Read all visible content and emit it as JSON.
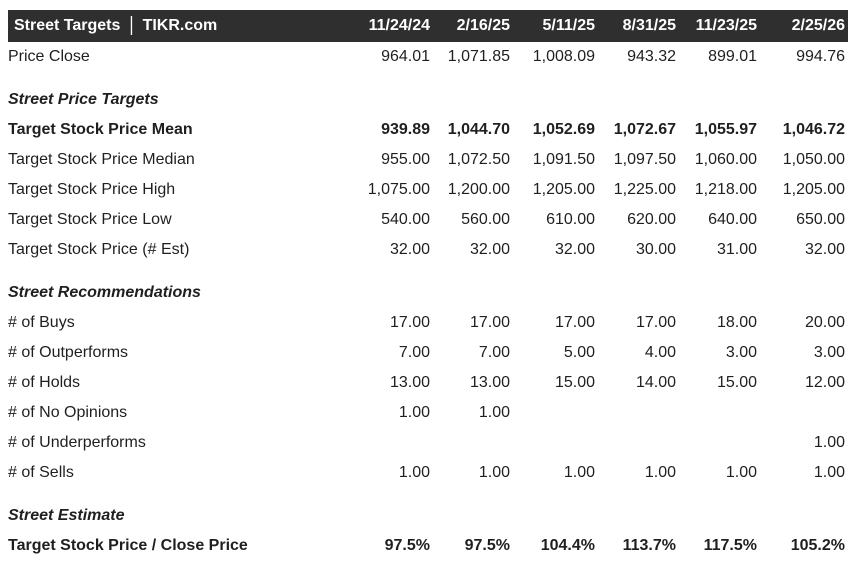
{
  "title": {
    "left": "Street Targets",
    "separator": "|",
    "right": "TIKR.com"
  },
  "colors": {
    "header_bg": "#2f2f2f",
    "header_text": "#ffffff",
    "body_text": "#1f1f1f"
  },
  "chart_data": {
    "type": "table",
    "title": "Street Targets | TIKR.com",
    "columns": [
      "11/24/24",
      "2/16/25",
      "5/11/25",
      "8/31/25",
      "11/23/25",
      "2/25/26"
    ],
    "rows": [
      {
        "label": "Price Close",
        "kind": "data",
        "values": [
          "964.01",
          "1,071.85",
          "1,008.09",
          "943.32",
          "899.01",
          "994.76"
        ]
      },
      {
        "label": "Street Price Targets",
        "kind": "section",
        "values": []
      },
      {
        "label": "Target Stock Price Mean",
        "kind": "data-bold",
        "values": [
          "939.89",
          "1,044.70",
          "1,052.69",
          "1,072.67",
          "1,055.97",
          "1,046.72"
        ]
      },
      {
        "label": "Target Stock Price Median",
        "kind": "data",
        "values": [
          "955.00",
          "1,072.50",
          "1,091.50",
          "1,097.50",
          "1,060.00",
          "1,050.00"
        ]
      },
      {
        "label": "Target Stock Price High",
        "kind": "data",
        "values": [
          "1,075.00",
          "1,200.00",
          "1,205.00",
          "1,225.00",
          "1,218.00",
          "1,205.00"
        ]
      },
      {
        "label": "Target Stock Price Low",
        "kind": "data",
        "values": [
          "540.00",
          "560.00",
          "610.00",
          "620.00",
          "640.00",
          "650.00"
        ]
      },
      {
        "label": "Target Stock Price (# Est)",
        "kind": "data",
        "values": [
          "32.00",
          "32.00",
          "32.00",
          "30.00",
          "31.00",
          "32.00"
        ]
      },
      {
        "label": "Street Recommendations",
        "kind": "section",
        "values": []
      },
      {
        "label": "# of Buys",
        "kind": "data",
        "values": [
          "17.00",
          "17.00",
          "17.00",
          "17.00",
          "18.00",
          "20.00"
        ]
      },
      {
        "label": "# of Outperforms",
        "kind": "data",
        "values": [
          "7.00",
          "7.00",
          "5.00",
          "4.00",
          "3.00",
          "3.00"
        ]
      },
      {
        "label": "# of Holds",
        "kind": "data",
        "values": [
          "13.00",
          "13.00",
          "15.00",
          "14.00",
          "15.00",
          "12.00"
        ]
      },
      {
        "label": "# of No Opinions",
        "kind": "data",
        "values": [
          "1.00",
          "1.00",
          "",
          "",
          "",
          ""
        ]
      },
      {
        "label": "# of Underperforms",
        "kind": "data",
        "values": [
          "",
          "",
          "",
          "",
          "",
          "1.00"
        ]
      },
      {
        "label": "# of Sells",
        "kind": "data",
        "values": [
          "1.00",
          "1.00",
          "1.00",
          "1.00",
          "1.00",
          "1.00"
        ]
      },
      {
        "label": "Street Estimate",
        "kind": "section",
        "values": []
      },
      {
        "label": "Target Stock Price / Close Price",
        "kind": "data-bold",
        "values": [
          "97.5%",
          "97.5%",
          "104.4%",
          "113.7%",
          "117.5%",
          "105.2%"
        ]
      }
    ]
  }
}
